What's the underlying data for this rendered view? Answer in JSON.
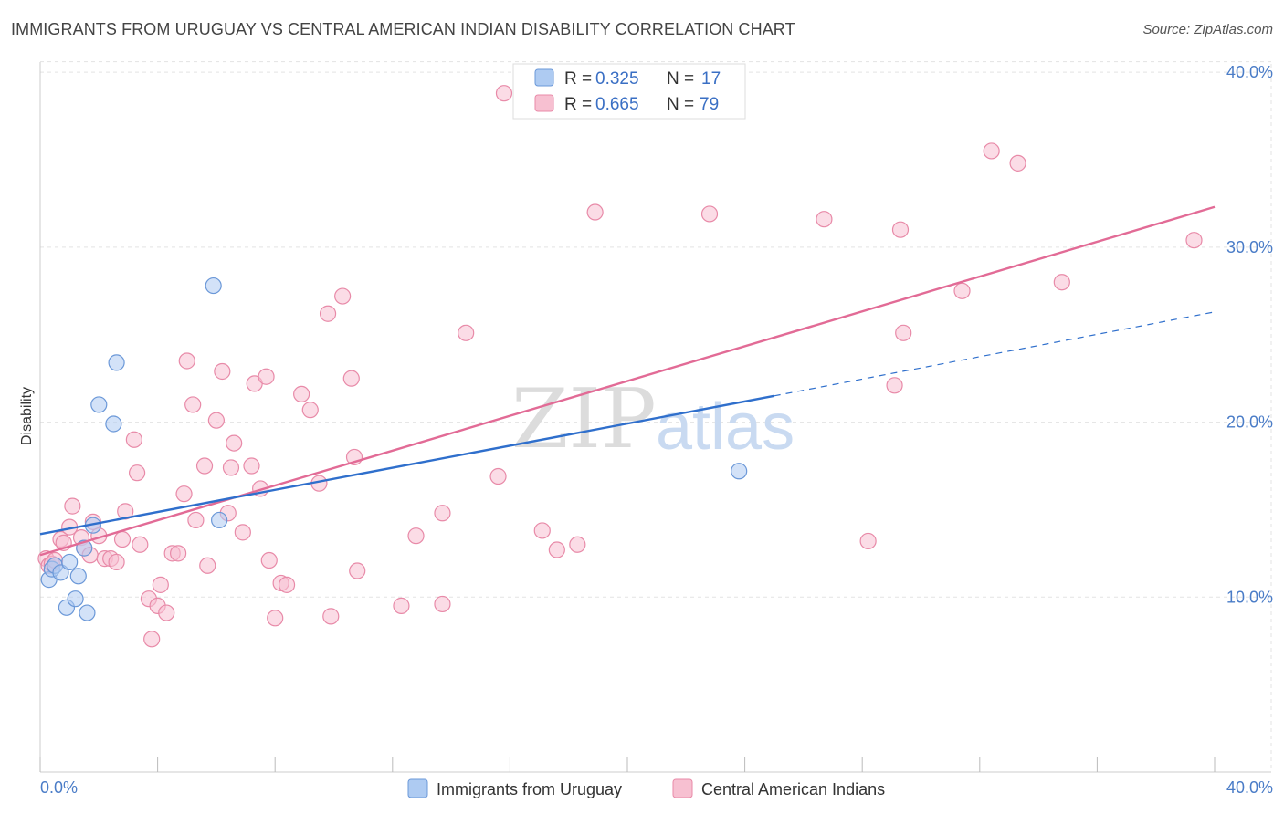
{
  "title": "IMMIGRANTS FROM URUGUAY VS CENTRAL AMERICAN INDIAN DISABILITY CORRELATION CHART",
  "source": "Source: ZipAtlas.com",
  "watermark": {
    "zip": "ZIP",
    "atlas": "atlas"
  },
  "colors": {
    "blue_fill": "#aecbf2",
    "blue_stroke": "#6b98d8",
    "blue_line": "#2f6fcc",
    "pink_fill": "#f7c0d1",
    "pink_stroke": "#e88aa8",
    "pink_line": "#e26b96",
    "tick": "#4a7cc7"
  },
  "chart_data": {
    "type": "scatter",
    "title": "IMMIGRANTS FROM URUGUAY VS CENTRAL AMERICAN INDIAN DISABILITY CORRELATION CHART",
    "xlabel": "",
    "ylabel": "Disability",
    "xlim": [
      0,
      40
    ],
    "ylim": [
      0,
      41
    ],
    "x_tick_labels": [
      "0.0%",
      "40.0%"
    ],
    "y_ticks": [
      10,
      20,
      30,
      40
    ],
    "y_tick_labels": [
      "10.0%",
      "20.0%",
      "30.0%",
      "40.0%"
    ],
    "grid": true,
    "legend": {
      "position": "top-center",
      "entries": [
        {
          "r_label": "R =",
          "r": "0.325",
          "n_label": "N =",
          "n": "17"
        },
        {
          "r_label": "R =",
          "r": "0.665",
          "n_label": "N =",
          "n": "79"
        }
      ]
    },
    "series": [
      {
        "name": "Immigrants from Uruguay",
        "color": "#aecbf2",
        "points": [
          [
            0.3,
            11.0
          ],
          [
            0.4,
            11.6
          ],
          [
            0.5,
            11.8
          ],
          [
            0.7,
            11.4
          ],
          [
            0.9,
            9.4
          ],
          [
            1.0,
            12.0
          ],
          [
            1.2,
            9.9
          ],
          [
            1.3,
            11.2
          ],
          [
            1.6,
            9.1
          ],
          [
            1.5,
            12.8
          ],
          [
            1.8,
            14.1
          ],
          [
            2.0,
            21.0
          ],
          [
            2.5,
            19.9
          ],
          [
            2.6,
            23.4
          ],
          [
            5.9,
            27.8
          ],
          [
            6.1,
            14.4
          ],
          [
            23.8,
            17.2
          ]
        ],
        "trend": {
          "x0": 0,
          "y0": 13.6,
          "x1": 25.0,
          "y1": 21.5,
          "dashed_to_x": 40,
          "dashed_to_y": 26.3
        }
      },
      {
        "name": "Central American Indians",
        "color": "#f7c0d1",
        "points": [
          [
            0.2,
            12.2
          ],
          [
            0.3,
            11.8
          ],
          [
            0.4,
            11.9
          ],
          [
            0.5,
            12.1
          ],
          [
            0.7,
            13.3
          ],
          [
            0.8,
            13.1
          ],
          [
            1.0,
            14.0
          ],
          [
            1.1,
            15.2
          ],
          [
            1.4,
            13.4
          ],
          [
            1.5,
            12.8
          ],
          [
            1.7,
            12.4
          ],
          [
            1.8,
            14.3
          ],
          [
            2.0,
            13.5
          ],
          [
            2.2,
            12.2
          ],
          [
            2.4,
            12.2
          ],
          [
            2.6,
            12.0
          ],
          [
            2.8,
            13.3
          ],
          [
            2.9,
            14.9
          ],
          [
            3.2,
            19.0
          ],
          [
            3.3,
            17.1
          ],
          [
            3.4,
            13.0
          ],
          [
            3.7,
            9.9
          ],
          [
            3.8,
            7.6
          ],
          [
            4.0,
            9.5
          ],
          [
            4.1,
            10.7
          ],
          [
            4.3,
            9.1
          ],
          [
            4.5,
            12.5
          ],
          [
            4.7,
            12.5
          ],
          [
            4.9,
            15.9
          ],
          [
            5.0,
            23.5
          ],
          [
            5.2,
            21.0
          ],
          [
            5.3,
            14.4
          ],
          [
            5.6,
            17.5
          ],
          [
            5.7,
            11.8
          ],
          [
            6.0,
            20.1
          ],
          [
            6.2,
            22.9
          ],
          [
            6.4,
            14.8
          ],
          [
            6.5,
            17.4
          ],
          [
            6.6,
            18.8
          ],
          [
            6.9,
            13.7
          ],
          [
            7.2,
            17.5
          ],
          [
            7.3,
            22.2
          ],
          [
            7.5,
            16.2
          ],
          [
            7.7,
            22.6
          ],
          [
            7.8,
            12.1
          ],
          [
            8.0,
            8.8
          ],
          [
            8.2,
            10.8
          ],
          [
            8.4,
            10.7
          ],
          [
            8.9,
            21.6
          ],
          [
            9.2,
            20.7
          ],
          [
            9.5,
            16.5
          ],
          [
            9.8,
            26.2
          ],
          [
            9.9,
            8.9
          ],
          [
            10.3,
            27.2
          ],
          [
            10.6,
            22.5
          ],
          [
            10.7,
            18.0
          ],
          [
            10.8,
            11.5
          ],
          [
            12.3,
            9.5
          ],
          [
            12.8,
            13.5
          ],
          [
            13.7,
            14.8
          ],
          [
            13.7,
            9.6
          ],
          [
            14.5,
            25.1
          ],
          [
            15.6,
            16.9
          ],
          [
            15.8,
            38.8
          ],
          [
            17.1,
            13.8
          ],
          [
            17.6,
            12.7
          ],
          [
            18.3,
            13.0
          ],
          [
            18.9,
            32.0
          ],
          [
            22.8,
            31.9
          ],
          [
            26.7,
            31.6
          ],
          [
            28.2,
            13.2
          ],
          [
            29.1,
            22.1
          ],
          [
            29.3,
            31.0
          ],
          [
            29.4,
            25.1
          ],
          [
            31.4,
            27.5
          ],
          [
            32.4,
            35.5
          ],
          [
            33.3,
            34.8
          ],
          [
            34.8,
            28.0
          ],
          [
            39.3,
            30.4
          ]
        ],
        "trend": {
          "x0": 0,
          "y0": 12.4,
          "x1": 40,
          "y1": 32.3
        }
      }
    ]
  }
}
